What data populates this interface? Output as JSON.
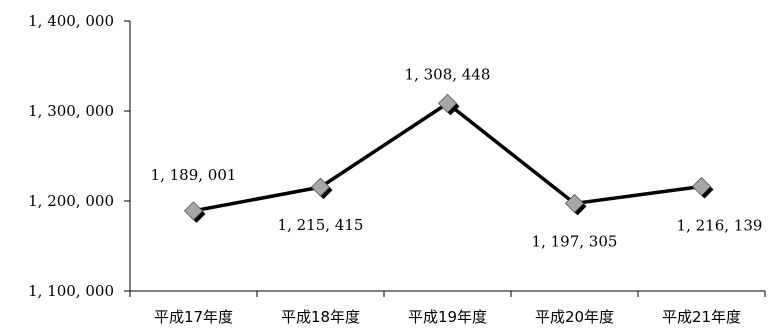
{
  "chart_data": {
    "type": "line",
    "categories": [
      "平成17年度",
      "平成18年度",
      "平成19年度",
      "平成20年度",
      "平成21年度"
    ],
    "series": [
      {
        "values": [
          1189001,
          1215415,
          1308448,
          1197305,
          1216139
        ]
      }
    ],
    "data_labels": [
      "1, 189, 001",
      "1, 215, 415",
      "1, 308, 448",
      "1, 197, 305",
      "1, 216, 139"
    ],
    "y_ticks": [
      1100000,
      1200000,
      1300000,
      1400000
    ],
    "y_tick_labels": [
      "1, 100, 000",
      "1, 200, 000",
      "1, 300, 000",
      "1, 400, 000"
    ],
    "ylim": [
      1100000,
      1400000
    ],
    "title": "",
    "xlabel": "",
    "ylabel": "",
    "grid": false,
    "legend": "none",
    "colors": {
      "line": "#000000",
      "marker_fill": "#a6a6a6",
      "marker_shadow": "#000000"
    }
  }
}
